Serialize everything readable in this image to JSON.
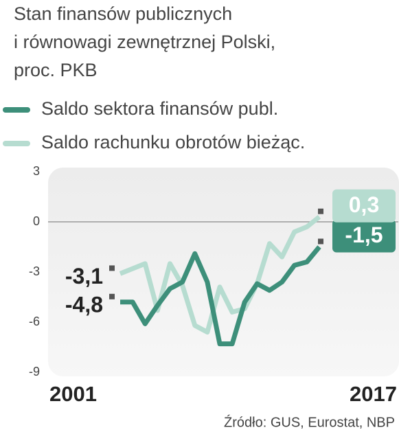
{
  "chart_data": {
    "type": "line",
    "title": [
      "Stan finansów publicznych",
      "i równowagi zewnętrznej Polski,",
      "proc. PKB"
    ],
    "x": [
      2001,
      2002,
      2003,
      2004,
      2005,
      2006,
      2007,
      2008,
      2009,
      2010,
      2011,
      2012,
      2013,
      2014,
      2015,
      2016,
      2017
    ],
    "xlim": [
      2001,
      2017
    ],
    "xticks": [
      2001,
      2017
    ],
    "ylim": [
      -9,
      3
    ],
    "yticks": [
      3,
      0,
      -3,
      -6,
      -9
    ],
    "series": [
      {
        "name": "Saldo sektora finansów publ.",
        "color": "#3d8f7a",
        "values": [
          -4.8,
          -4.8,
          -6.1,
          -5.0,
          -4.0,
          -3.6,
          -1.9,
          -3.6,
          -7.3,
          -7.3,
          -4.8,
          -3.7,
          -4.1,
          -3.6,
          -2.6,
          -2.4,
          -1.5
        ],
        "value_labels": [
          "-4,8",
          null,
          null,
          null,
          null,
          null,
          null,
          null,
          null,
          null,
          null,
          null,
          null,
          null,
          null,
          null,
          "-1,5"
        ]
      },
      {
        "name": "Saldo rachunku obrotów bieżąc.",
        "color": "#b6dcd0",
        "values": [
          -3.1,
          -2.8,
          -2.5,
          -5.3,
          -2.5,
          -3.8,
          -6.2,
          -6.6,
          -3.9,
          -5.4,
          -5.2,
          -3.7,
          -1.3,
          -2.1,
          -0.6,
          -0.3,
          0.3
        ],
        "value_labels": [
          "-3,1",
          null,
          null,
          null,
          null,
          null,
          null,
          null,
          null,
          null,
          null,
          null,
          null,
          null,
          null,
          null,
          "0,3"
        ]
      }
    ],
    "source": "Źródło: GUS, Eurostat, NBP"
  }
}
